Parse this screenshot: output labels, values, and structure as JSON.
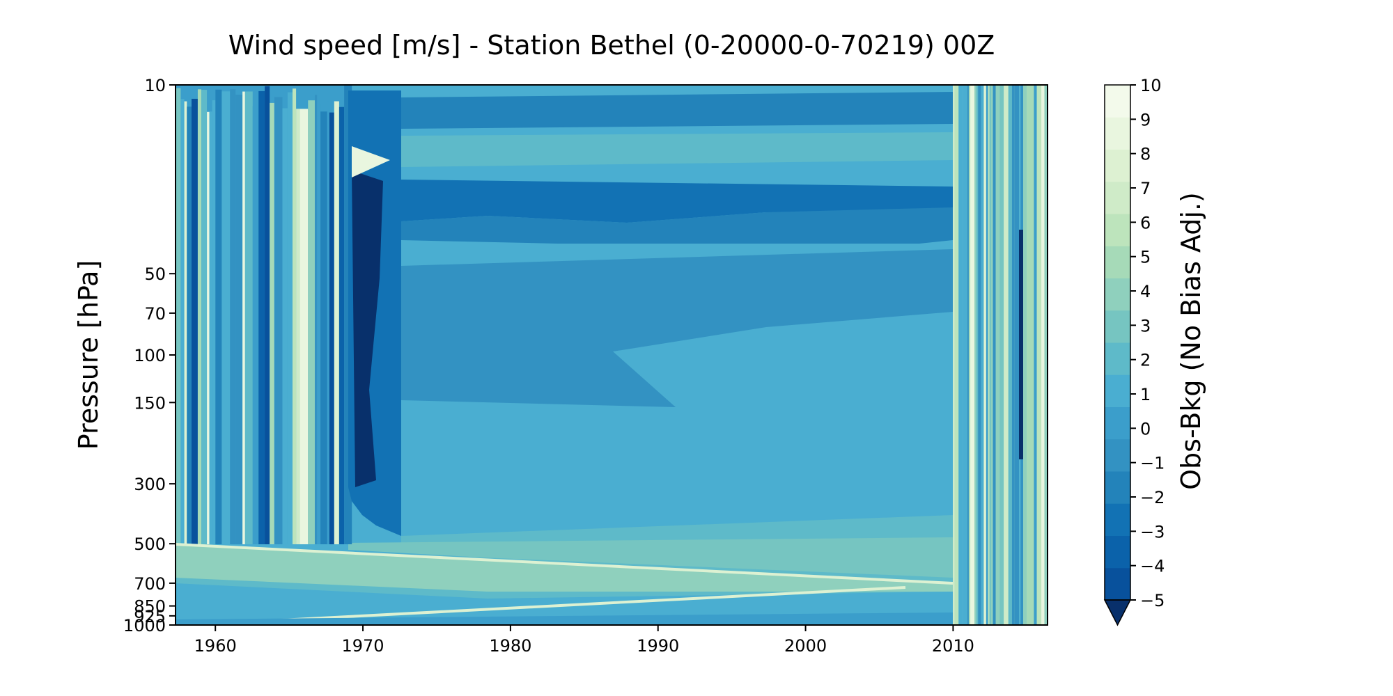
{
  "chart_data": {
    "type": "heatmap",
    "title": "Wind speed [m/s] - Station Bethel (0-20000-0-70219) 00Z",
    "ylabel": "Pressure [hPa]",
    "xlabel": "",
    "x_ticks": [
      1960,
      1970,
      1980,
      1990,
      2000,
      2010
    ],
    "x_tick_labels": [
      "1960",
      "1970",
      "1980",
      "1990",
      "2000",
      "2010"
    ],
    "xlim": [
      1957.3,
      2016.4
    ],
    "y_ticks": [
      10,
      50,
      70,
      100,
      150,
      300,
      500,
      700,
      850,
      925,
      1000
    ],
    "y_tick_labels": [
      "10",
      "50",
      "70",
      "100",
      "150",
      "300",
      "500",
      "700",
      "850",
      "925",
      "1000"
    ],
    "ylim": [
      1000,
      10
    ],
    "colorbar": {
      "label": "Obs-Bkg (No Bias Adj.)",
      "ticks": [
        10,
        9,
        8,
        7,
        6,
        5,
        4,
        3,
        2,
        1,
        0,
        -1,
        -2,
        -3,
        -4,
        -5
      ],
      "tick_labels": [
        "10",
        "9",
        "8",
        "7",
        "6",
        "5",
        "4",
        "3",
        "2",
        "1",
        "0",
        "−1",
        "−2",
        "−3",
        "−4",
        "−5"
      ],
      "range": [
        -5,
        10
      ],
      "extend": "min",
      "colors": [
        "#08306b",
        "#08519c",
        "#0b62aa",
        "#1272b4",
        "#2383ba",
        "#3392c2",
        "#3b9ecb",
        "#4aaed1",
        "#5ebac9",
        "#76c5c1",
        "#8fd0bd",
        "#a6dab8",
        "#bde4bc",
        "#cfebc8",
        "#ddf1d2",
        "#e9f6df",
        "#f3faeb"
      ]
    }
  }
}
